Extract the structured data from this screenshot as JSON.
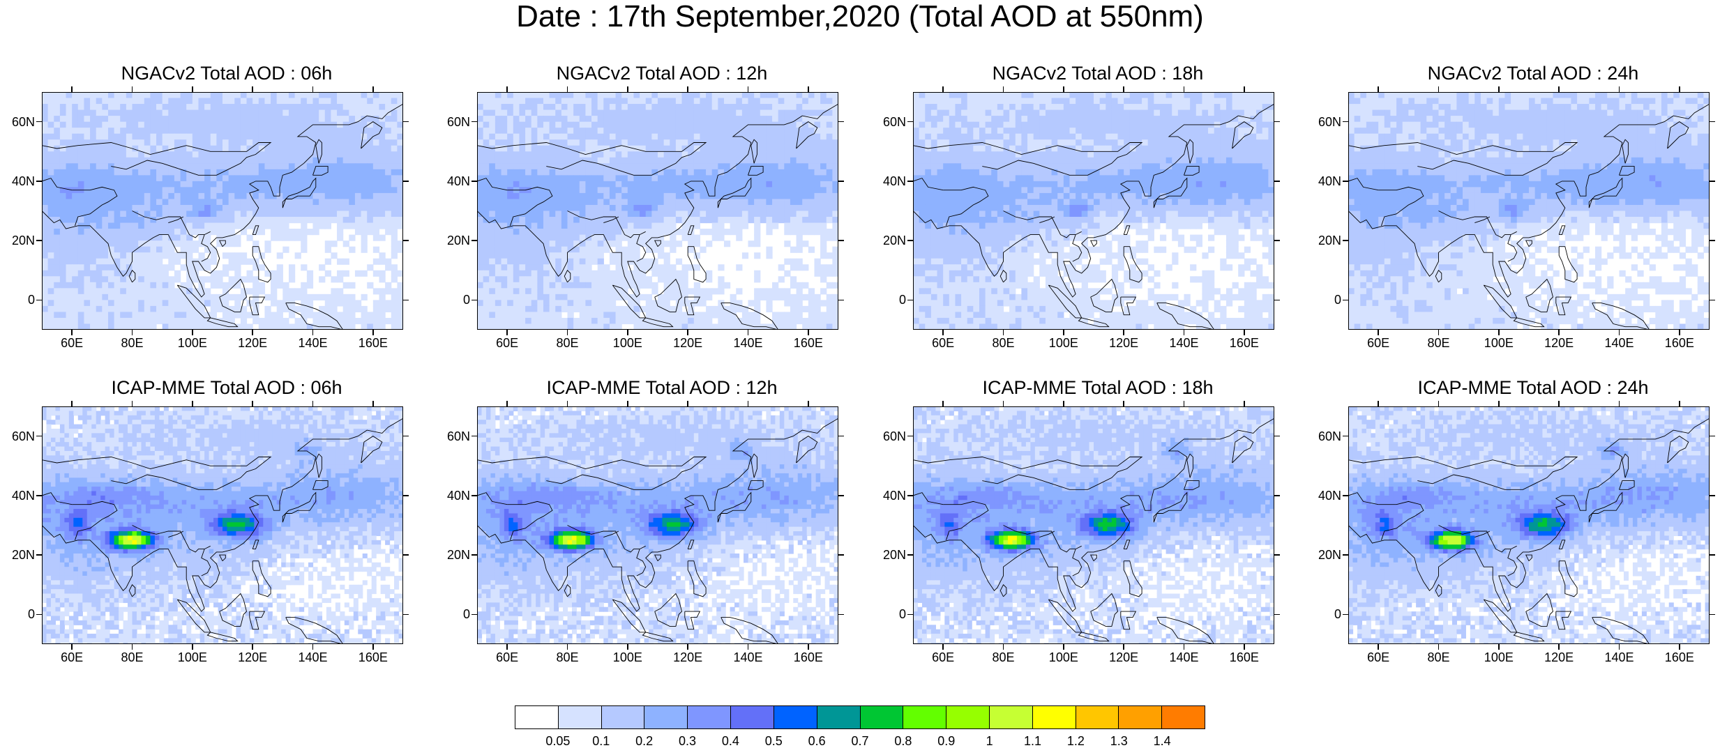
{
  "title": "Date : 17th September,2020 (Total AOD at 550nm)",
  "panels": [
    {
      "title": "NGACv2 Total AOD : 06h"
    },
    {
      "title": "NGACv2 Total AOD : 12h"
    },
    {
      "title": "NGACv2 Total AOD : 18h"
    },
    {
      "title": "NGACv2 Total AOD : 24h"
    },
    {
      "title": "ICAP-MME Total AOD : 06h"
    },
    {
      "title": "ICAP-MME Total AOD : 12h"
    },
    {
      "title": "ICAP-MME Total AOD : 18h"
    },
    {
      "title": "ICAP-MME Total AOD : 24h"
    }
  ],
  "lat_ticks": [
    "60N",
    "40N",
    "20N",
    "0"
  ],
  "lon_ticks": [
    "60E",
    "80E",
    "100E",
    "120E",
    "140E",
    "160E"
  ],
  "colorbar": {
    "labels": [
      "0.05",
      "0.1",
      "0.2",
      "0.3",
      "0.4",
      "0.5",
      "0.6",
      "0.7",
      "0.8",
      "0.9",
      "1",
      "1.1",
      "1.2",
      "1.3",
      "1.4"
    ],
    "colors": [
      "#ffffff",
      "#d6e2ff",
      "#b5c9ff",
      "#8eb2ff",
      "#7f96ff",
      "#6370f8",
      "#0063ff",
      "#009696",
      "#00c633",
      "#63ff00",
      "#96ff00",
      "#c6ff33",
      "#ffff00",
      "#ffc600",
      "#ffa000",
      "#ff7c00",
      "#ff1900"
    ]
  }
}
